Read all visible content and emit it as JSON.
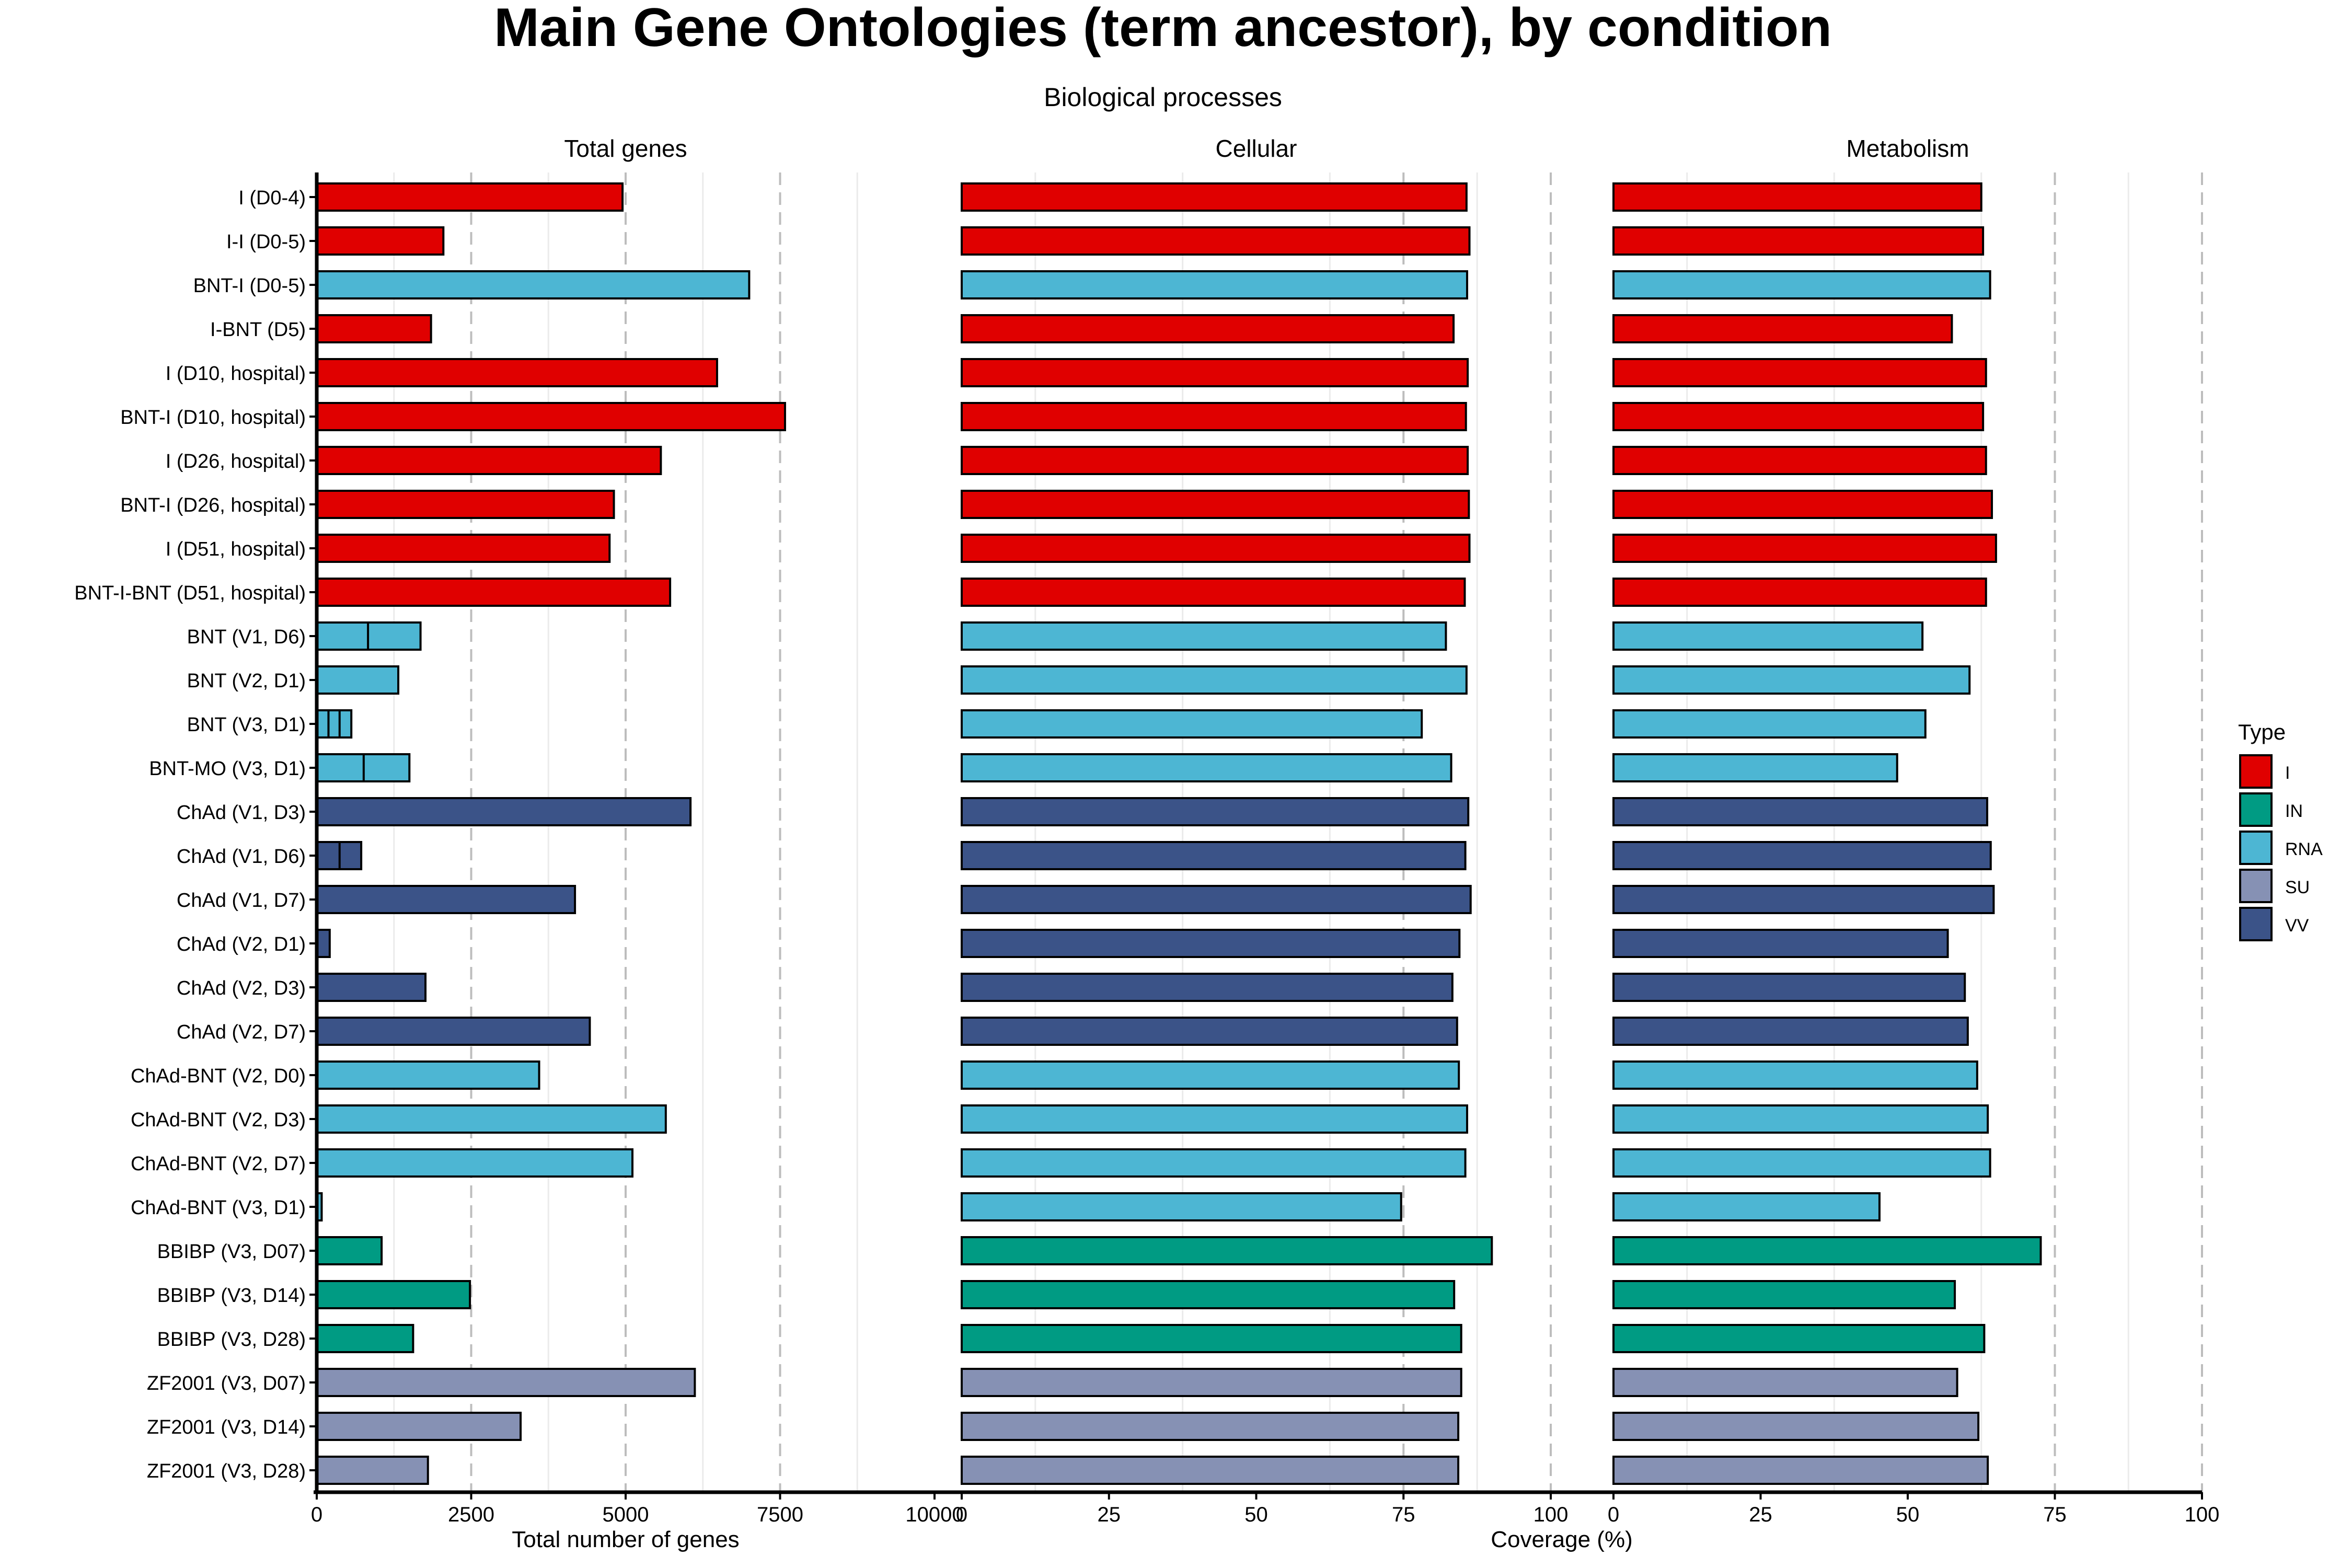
{
  "title": "Main Gene Ontologies (term ancestor), by condition",
  "subtitle": "Biological processes",
  "chart_data": {
    "type": "bar",
    "orientation": "horizontal",
    "facet_layout": "three panels side by side sharing the condition axis",
    "categories": [
      "I (D0-4)",
      "I-I (D0-5)",
      "BNT-I (D0-5)",
      "I-BNT (D5)",
      "I (D10, hospital)",
      "BNT-I (D10, hospital)",
      "I (D26, hospital)",
      "BNT-I (D26, hospital)",
      "I (D51, hospital)",
      "BNT-I-BNT (D51, hospital)",
      "BNT (V1, D6)",
      "BNT (V2, D1)",
      "BNT (V3, D1)",
      "BNT-MO (V3, D1)",
      "ChAd (V1, D3)",
      "ChAd (V1, D6)",
      "ChAd (V1, D7)",
      "ChAd (V2, D1)",
      "ChAd (V2, D3)",
      "ChAd (V2, D7)",
      "ChAd-BNT (V2, D0)",
      "ChAd-BNT (V2, D3)",
      "ChAd-BNT (V2, D7)",
      "ChAd-BNT (V3, D1)",
      "BBIBP (V3, D07)",
      "BBIBP (V3, D14)",
      "BBIBP (V3, D28)",
      "ZF2001 (V3, D07)",
      "ZF2001 (V3, D14)",
      "ZF2001 (V3, D28)"
    ],
    "types": [
      "I",
      "I",
      "RNA",
      "I",
      "I",
      "I",
      "I",
      "I",
      "I",
      "I",
      "RNA",
      "RNA",
      "RNA",
      "RNA",
      "VV",
      "VV",
      "VV",
      "VV",
      "VV",
      "VV",
      "RNA",
      "RNA",
      "RNA",
      "RNA",
      "IN",
      "IN",
      "IN",
      "SU",
      "SU",
      "SU"
    ],
    "panels": [
      {
        "name": "Total genes",
        "xlim": [
          0,
          10000
        ],
        "xticks": [
          "0",
          "2500",
          "5000",
          "7500",
          "10000"
        ],
        "xtick_values": [
          0,
          2500,
          5000,
          7500,
          10000
        ],
        "dashed_lines": [
          2500,
          5000,
          7500
        ],
        "values": [
          4950,
          2050,
          7000,
          1850,
          6480,
          7580,
          5570,
          4810,
          4740,
          5720,
          1680,
          1320,
          560,
          1500,
          6050,
          720,
          4180,
          210,
          1760,
          4420,
          3600,
          5650,
          5110,
          80,
          1050,
          2480,
          1560,
          6120,
          3300,
          1800
        ],
        "segment_dividers": [
          null,
          null,
          null,
          null,
          null,
          null,
          null,
          null,
          null,
          null,
          [
            830
          ],
          null,
          [
            190,
            370
          ],
          [
            760
          ],
          null,
          [
            370
          ],
          null,
          null,
          null,
          null,
          null,
          null,
          null,
          null,
          null,
          null,
          null,
          null,
          null,
          null
        ]
      },
      {
        "name": "Cellular",
        "xlim": [
          0,
          100
        ],
        "xticks": [
          "0",
          "25",
          "50",
          "75",
          "100"
        ],
        "xtick_values": [
          0,
          25,
          50,
          75,
          100
        ],
        "dashed_lines": [
          75,
          100
        ],
        "values": [
          85.7,
          86.2,
          85.8,
          83.5,
          85.9,
          85.6,
          85.9,
          86.1,
          86.2,
          85.4,
          82.2,
          85.7,
          78.1,
          83.1,
          86.0,
          85.5,
          86.4,
          84.5,
          83.3,
          84.1,
          84.4,
          85.8,
          85.5,
          74.6,
          90.0,
          83.6,
          84.8,
          84.8,
          84.3,
          84.3
        ]
      },
      {
        "name": "Metabolism",
        "xlim": [
          0,
          100
        ],
        "xticks": [
          "0",
          "25",
          "50",
          "75",
          "100"
        ],
        "xtick_values": [
          0,
          25,
          50,
          75,
          100
        ],
        "dashed_lines": [
          75,
          100
        ],
        "values": [
          62.5,
          62.8,
          64.0,
          57.5,
          63.3,
          62.8,
          63.3,
          64.3,
          65.0,
          63.3,
          52.5,
          60.5,
          53.0,
          48.2,
          63.5,
          64.1,
          64.6,
          56.8,
          59.7,
          60.2,
          61.8,
          63.6,
          64.0,
          45.2,
          72.6,
          58.0,
          63.0,
          58.4,
          62.0,
          63.6
        ]
      }
    ],
    "xlabel_left": "Total number of genes",
    "xlabel_right": "Coverage (%)",
    "legend": {
      "title": "Type",
      "placement": "right",
      "entries": [
        {
          "label": "I",
          "color": "#e00000"
        },
        {
          "label": "IN",
          "color": "#009b83"
        },
        {
          "label": "RNA",
          "color": "#4db6d3"
        },
        {
          "label": "SU",
          "color": "#8691b4"
        },
        {
          "label": "VV",
          "color": "#3b5388"
        }
      ]
    },
    "grid": "vertical dashed gridlines"
  }
}
